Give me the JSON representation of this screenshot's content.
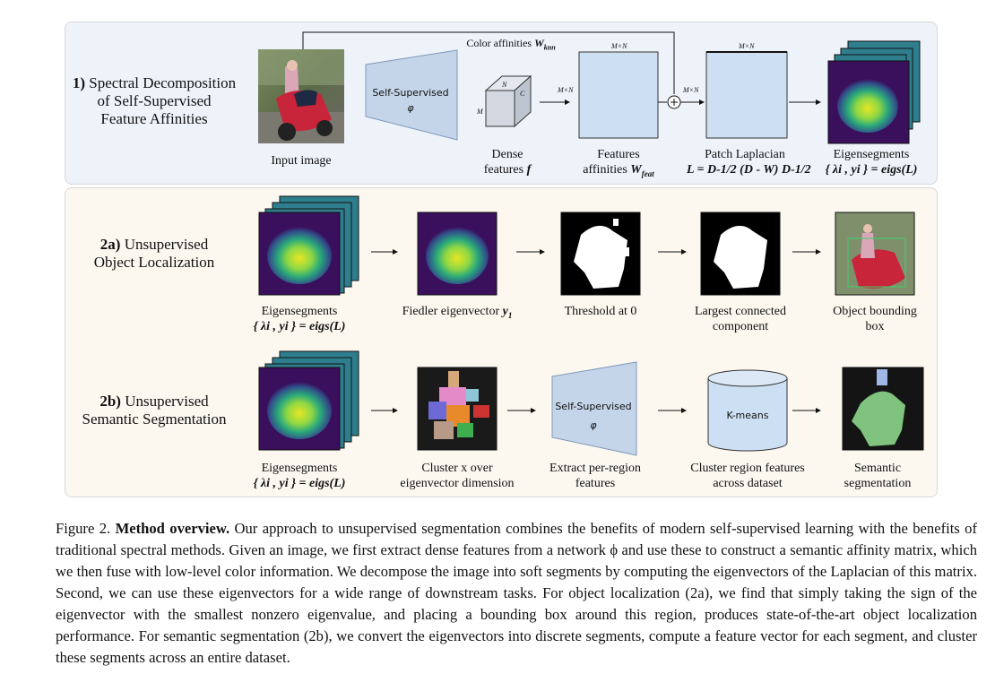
{
  "stage1": {
    "title_num": "1)",
    "title_rest": "Spectral Decomposition",
    "title_line2": "of Self-Supervised",
    "title_line3": "Feature Affinities",
    "input_label": "Input image",
    "encoder_label": "Self-Supervised",
    "encoder_symbol": "φ",
    "cube_n": "N",
    "cube_c": "C",
    "cube_m": "M",
    "dense_line1": "Dense",
    "dense_line2": "features",
    "dense_sym": "f",
    "mxn": "M×N",
    "color_aff": "Color affinities",
    "color_aff_sym": "W",
    "color_aff_sub": "knn",
    "feat_line1": "Features",
    "feat_line2": "affinities",
    "feat_sym": "W",
    "feat_sub": "feat",
    "lap_line1": "Patch Laplacian",
    "lap_formula": "L = D-1/2 (D - W) D-1/2",
    "eig_line1": "Eigensegments",
    "eig_formula": "{ λi , yi } = eigs(L)"
  },
  "stage2a": {
    "title_num": "2a)",
    "title_rest": "Unsupervised",
    "title_line2": "Object Localization",
    "labels": [
      "Eigensegments",
      "Fiedler eigenvector",
      "Threshold at 0",
      "Largest connected",
      "Object bounding"
    ],
    "labels2": [
      "{ λi , yi } = eigs(L)",
      "",
      "",
      "component",
      "box"
    ],
    "fiedler_sym": "y",
    "fiedler_sub": "1"
  },
  "stage2b": {
    "title_num": "2b)",
    "title_rest": "Unsupervised",
    "title_line2": "Semantic Segmentation",
    "encoder_label": "Self-Supervised",
    "encoder_symbol": "φ",
    "kmeans_label": "K-means",
    "labels": [
      "Eigensegments",
      "Cluster x over",
      "Extract per-region",
      "Cluster region features",
      "Semantic"
    ],
    "labels2": [
      "{ λi , yi } = eigs(L)",
      "eigenvector dimension",
      "features",
      "across dataset",
      "segmentation"
    ]
  },
  "caption": {
    "prefix": "Figure 2.",
    "bold": "Method overview.",
    "text": " Our approach to unsupervised segmentation combines the benefits of modern self-supervised learning with the benefits of traditional spectral methods. Given an image, we first extract dense features from a network ϕ and use these to construct a semantic affinity matrix, which we then fuse with low-level color information. We decompose the image into soft segments by computing the eigenvectors of the Laplacian of this matrix. Second, we can use these eigenvectors for a wide range of downstream tasks. For object localization (2a), we find that simply taking the sign of the eigenvector with the smallest nonzero eigenvalue, and placing a bounding box around this region, produces state-of-the-art object localization performance. For semantic segmentation (2b), we convert the eigenvectors into discrete segments, compute a feature vector for each segment, and cluster these segments across an entire dataset."
  },
  "colors": {
    "panel1_bg": "#eef3fa",
    "panel2_bg": "#fcf8f0",
    "trapezoid_fill": "#c4d5ea",
    "stack_teal": "#2f7e8e",
    "viridis_dark": "#3a0f5c",
    "viridis_yellow": "#e6e625"
  }
}
